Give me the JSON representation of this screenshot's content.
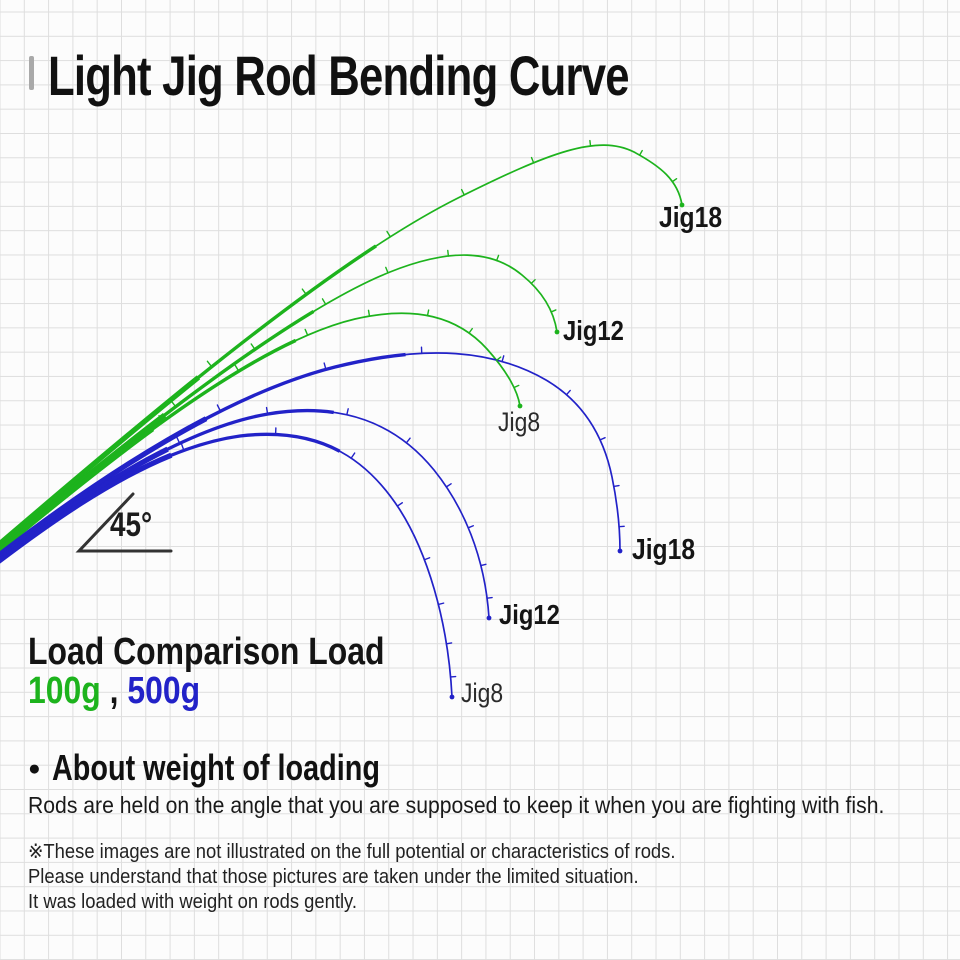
{
  "title": "Light Jig Rod Bending Curve",
  "angle_label": "45°",
  "legend": {
    "heading": "Load Comparison Load",
    "light_load": "100g",
    "separator": " , ",
    "heavy_load": "500g"
  },
  "colors": {
    "light_load_green": "#1db31d",
    "heavy_load_blue": "#2222c8",
    "angle_marker": "#333333",
    "grid_line": "#dedede",
    "background": "#fcfcfc",
    "text": "#111111"
  },
  "curves": {
    "light_100g": [
      {
        "label": "Jig18"
      },
      {
        "label": "Jig12"
      },
      {
        "label": "Jig8"
      }
    ],
    "heavy_500g": [
      {
        "label": "Jig18"
      },
      {
        "label": "Jig12"
      },
      {
        "label": "Jig8"
      }
    ]
  },
  "about": {
    "bullet": "●",
    "heading": "About weight of loading",
    "body": "Rods are held on the angle that you are supposed to keep it when you are fighting with fish."
  },
  "footnotes": [
    "※These images are not illustrated on the full potential or characteristics of rods.",
    "Please understand that those pictures are taken under the limited situation.",
    "It was loaded with weight on rods gently."
  ]
}
